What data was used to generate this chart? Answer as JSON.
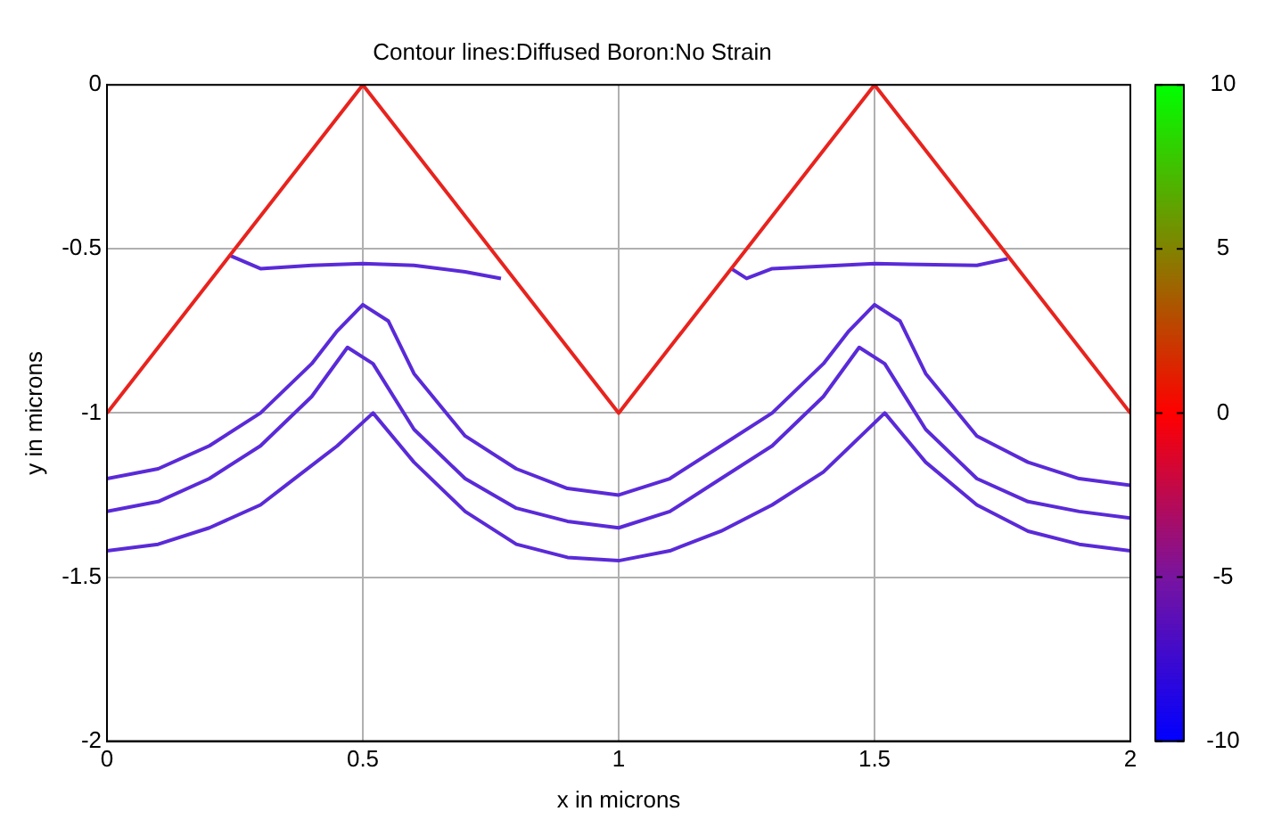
{
  "chart_data": {
    "type": "line",
    "title": "Contour lines:Diffused Boron:No Strain",
    "xlabel": "x in microns",
    "ylabel": "y in microns",
    "xlim": [
      0,
      2
    ],
    "xticks": [
      0,
      0.5,
      1,
      1.5,
      2
    ],
    "ylim": [
      -2,
      0
    ],
    "yticks": [
      -2,
      -1.5,
      -1,
      -0.5,
      0
    ],
    "clim": [
      -10,
      10
    ],
    "cticks": [
      -10,
      -5,
      0,
      5,
      10
    ],
    "grid": true,
    "legend": false,
    "marker": "none",
    "line_style": "solid",
    "series": [
      {
        "color": "#e8231e",
        "x": [
          0,
          0.5,
          1,
          1.5,
          2
        ],
        "values": [
          -1,
          0,
          -1,
          0,
          -1
        ]
      },
      {
        "color": "#5a2ad8",
        "x": [
          0.24,
          0.3,
          0.4,
          0.5,
          0.6,
          0.7,
          0.77
        ],
        "values": [
          -0.52,
          -0.56,
          -0.55,
          -0.545,
          -0.55,
          -0.57,
          -0.59
        ]
      },
      {
        "color": "#5a2ad8",
        "x": [
          1.22,
          1.25,
          1.3,
          1.5,
          1.7,
          1.76
        ],
        "values": [
          -0.56,
          -0.59,
          -0.56,
          -0.545,
          -0.55,
          -0.53
        ]
      },
      {
        "color": "#5a2ad8",
        "x": [
          0,
          0.1,
          0.2,
          0.3,
          0.4,
          0.45,
          0.5,
          0.55,
          0.6,
          0.7,
          0.8,
          0.9,
          1,
          1.1,
          1.2,
          1.3,
          1.4,
          1.45,
          1.5,
          1.55,
          1.6,
          1.7,
          1.8,
          1.9,
          2
        ],
        "values": [
          -1.2,
          -1.17,
          -1.1,
          -1.0,
          -0.85,
          -0.75,
          -0.67,
          -0.72,
          -0.88,
          -1.07,
          -1.17,
          -1.23,
          -1.25,
          -1.2,
          -1.1,
          -1.0,
          -0.85,
          -0.75,
          -0.67,
          -0.72,
          -0.88,
          -1.07,
          -1.15,
          -1.2,
          -1.22
        ]
      },
      {
        "color": "#5a2ad8",
        "x": [
          0,
          0.1,
          0.2,
          0.3,
          0.4,
          0.47,
          0.52,
          0.6,
          0.7,
          0.8,
          0.9,
          1,
          1.1,
          1.2,
          1.3,
          1.4,
          1.47,
          1.52,
          1.6,
          1.7,
          1.8,
          1.9,
          2
        ],
        "values": [
          -1.3,
          -1.27,
          -1.2,
          -1.1,
          -0.95,
          -0.8,
          -0.85,
          -1.05,
          -1.2,
          -1.29,
          -1.33,
          -1.35,
          -1.3,
          -1.2,
          -1.1,
          -0.95,
          -0.8,
          -0.85,
          -1.05,
          -1.2,
          -1.27,
          -1.3,
          -1.32
        ]
      },
      {
        "color": "#5a2ad8",
        "x": [
          0,
          0.1,
          0.2,
          0.3,
          0.35,
          0.45,
          0.52,
          0.6,
          0.7,
          0.8,
          0.9,
          1,
          1.1,
          1.2,
          1.3,
          1.4,
          1.52,
          1.6,
          1.7,
          1.8,
          1.9,
          2
        ],
        "values": [
          -1.42,
          -1.4,
          -1.35,
          -1.28,
          -1.22,
          -1.1,
          -1.0,
          -1.15,
          -1.3,
          -1.4,
          -1.44,
          -1.45,
          -1.42,
          -1.36,
          -1.28,
          -1.18,
          -1.0,
          -1.15,
          -1.28,
          -1.36,
          -1.4,
          -1.42
        ]
      }
    ]
  }
}
